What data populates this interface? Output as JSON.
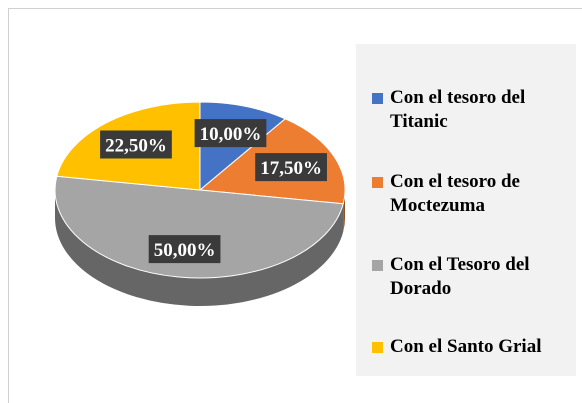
{
  "chart_data": {
    "type": "pie",
    "categories": [
      "Con el tesoro del Titanic",
      "Con el tesoro de Moctezuma",
      "Con el Tesoro del Dorado",
      "Con el Santo Grial"
    ],
    "values": [
      10,
      17.5,
      50,
      22.5
    ],
    "value_labels": [
      "10,00%",
      "17,50%",
      "50,00%",
      "22,50%"
    ],
    "colors": [
      "#4472c4",
      "#ed7d31",
      "#a5a5a5",
      "#ffc000"
    ],
    "legend": "right"
  }
}
